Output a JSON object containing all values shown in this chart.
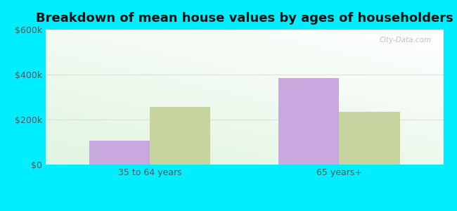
{
  "title": "Breakdown of mean house values by ages of householders",
  "categories": [
    "35 to 64 years",
    "65 years+"
  ],
  "series": {
    "Maringouin": [
      105000,
      385000
    ],
    "Louisiana": [
      255000,
      235000
    ]
  },
  "bar_colors": {
    "Maringouin": "#c9a8e0",
    "Louisiana": "#c8d4a0"
  },
  "ylim": [
    0,
    600000
  ],
  "yticks": [
    0,
    200000,
    400000,
    600000
  ],
  "ytick_labels": [
    "$0",
    "$200k",
    "$400k",
    "$600k"
  ],
  "title_fontsize": 13,
  "tick_fontsize": 9,
  "legend_fontsize": 10,
  "background_outer": "#00eeff",
  "grid_color": "#dddddd",
  "bar_width": 0.32,
  "watermark_text": "City-Data.com",
  "bg_gradient_colors": [
    "#e6f5e6",
    "#f5fdf5",
    "#ffffff"
  ],
  "text_color": "#555555"
}
